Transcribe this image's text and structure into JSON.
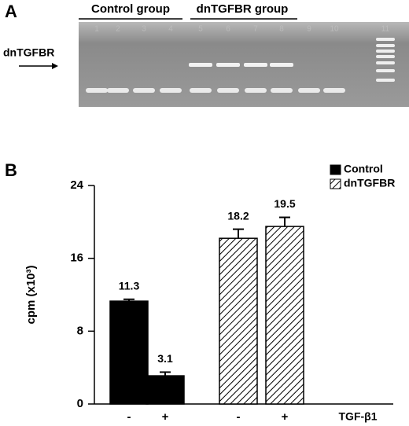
{
  "panel_a": {
    "label": "A",
    "groups": [
      "Control group",
      "dnTGFBR group"
    ],
    "marker": "dnTGFBR",
    "lanes": [
      "1",
      "2",
      "3",
      "4",
      "5",
      "6",
      "7",
      "8",
      "9",
      "10",
      "11"
    ]
  },
  "chart_data": {
    "type": "bar",
    "panel_label": "B",
    "ylabel": "cpm (x10³)",
    "xlabel": "TGF-β1",
    "categories": [
      "-",
      "+",
      "-",
      "+"
    ],
    "series": [
      {
        "name": "Control",
        "color": "#000000",
        "pattern": "solid",
        "values": [
          11.3,
          3.1,
          null,
          null
        ],
        "errors": [
          0.2,
          0.4,
          null,
          null
        ]
      },
      {
        "name": "dnTGFBR",
        "color": "#000000",
        "pattern": "hatch",
        "values": [
          null,
          null,
          18.2,
          19.5
        ],
        "errors": [
          null,
          null,
          1.0,
          1.0
        ]
      }
    ],
    "ylim": [
      0,
      24
    ],
    "yticks": [
      0,
      8,
      16,
      24
    ],
    "legend": "top-right"
  }
}
